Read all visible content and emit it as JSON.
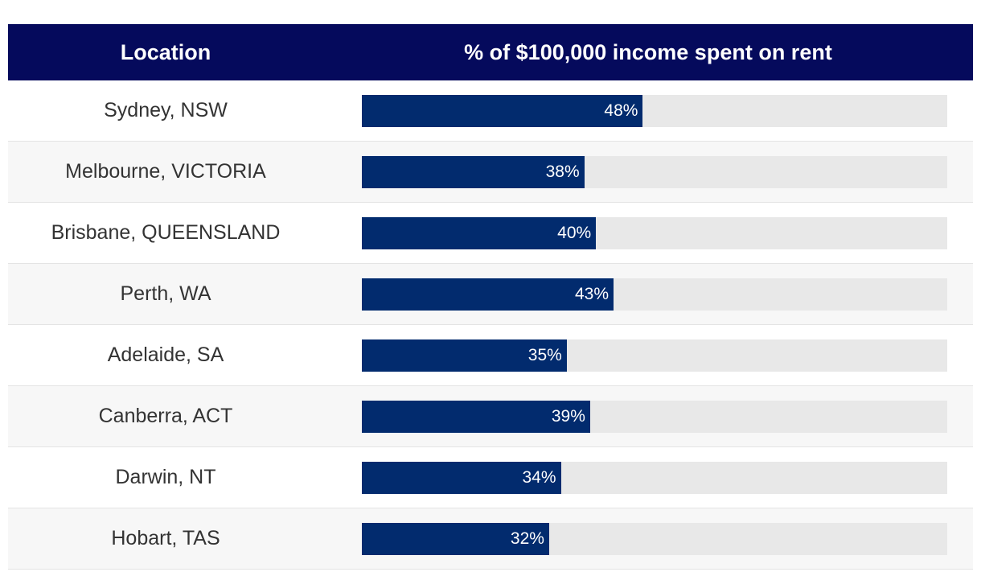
{
  "chart_data": {
    "type": "bar",
    "orientation": "horizontal",
    "title": "",
    "xlabel": "% of $100,000 income spent on rent",
    "ylabel": "Location",
    "xlim": [
      0,
      100
    ],
    "categories": [
      "Sydney, NSW",
      "Melbourne, VICTORIA",
      "Brisbane, QUEENSLAND",
      "Perth, WA",
      "Adelaide, SA",
      "Canberra, ACT",
      "Darwin, NT",
      "Hobart, TAS"
    ],
    "values": [
      48,
      38,
      40,
      43,
      35,
      39,
      34,
      32
    ],
    "labels": [
      "48%",
      "38%",
      "40%",
      "43%",
      "35%",
      "39%",
      "34%",
      "32%"
    ]
  },
  "header": {
    "location": "Location",
    "metric": "% of $100,000 income spent on rent"
  },
  "colors": {
    "header_bg": "#050a5c",
    "bar_fill": "#022b6e",
    "bar_track": "#e8e8e8"
  }
}
